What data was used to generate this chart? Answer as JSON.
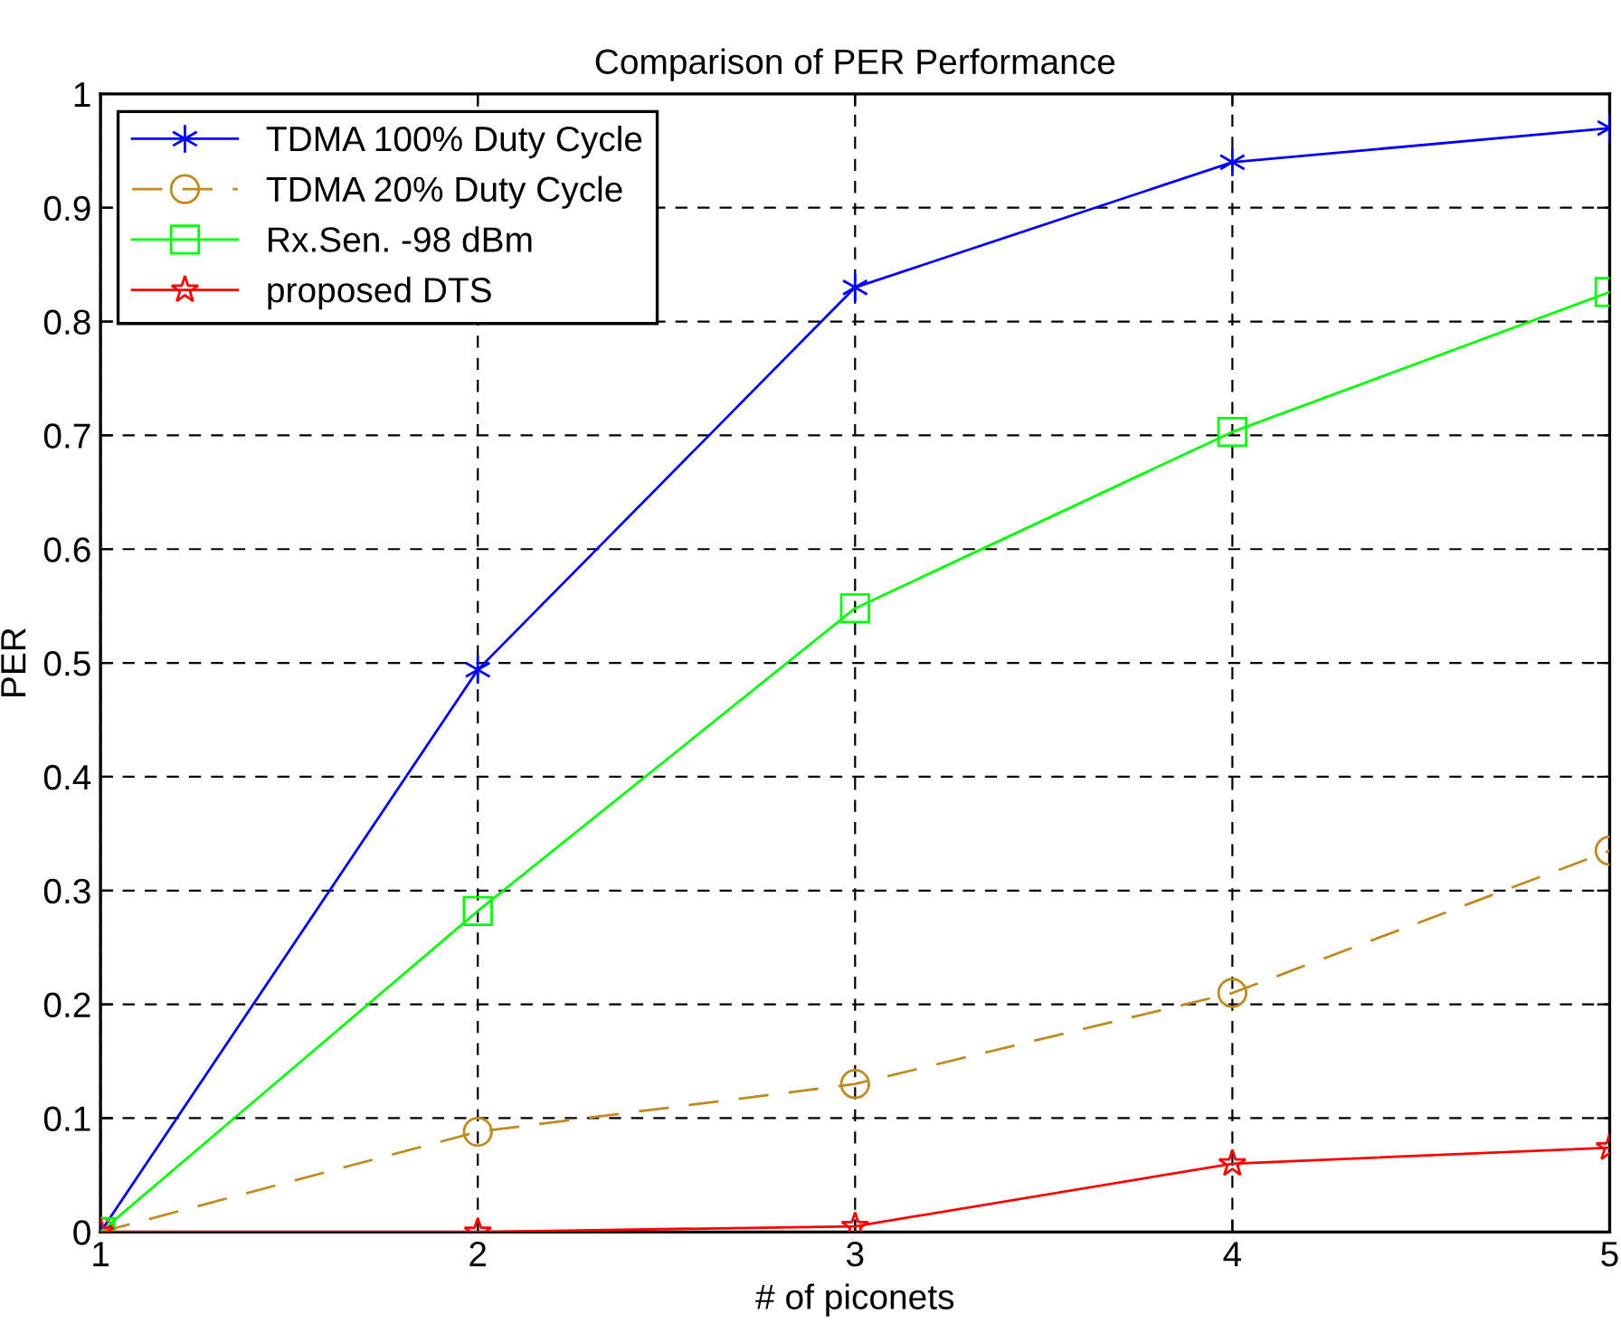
{
  "chart_data": {
    "type": "line",
    "title": "Comparison of PER Performance",
    "xlabel": "# of piconets",
    "ylabel": "PER",
    "x": [
      1,
      2,
      3,
      4,
      5
    ],
    "series": [
      {
        "name": "TDMA 100% Duty Cycle",
        "color": "#0000ff",
        "marker": "cross",
        "line_style": "solid",
        "values": [
          0,
          0.494,
          0.83,
          0.94,
          0.97
        ]
      },
      {
        "name": "TDMA 20% Duty Cycle",
        "color": "#c08a20",
        "marker": "circle",
        "line_style": "dashed",
        "values": [
          0,
          0.088,
          0.13,
          0.21,
          0.335
        ]
      },
      {
        "name": "Rx.Sen. -98 dBm",
        "color": "#00ff00",
        "marker": "square",
        "line_style": "solid",
        "values": [
          0,
          0.282,
          0.548,
          0.703,
          0.826
        ]
      },
      {
        "name": "proposed DTS",
        "color": "#ff0000",
        "marker": "star",
        "line_style": "solid",
        "values": [
          0,
          0,
          0.005,
          0.06,
          0.074
        ]
      }
    ],
    "xlim": [
      1,
      5
    ],
    "xticks": [
      1,
      2,
      3,
      4,
      5
    ],
    "ylim": [
      0,
      1
    ],
    "yticks": [
      0,
      0.1,
      0.2,
      0.3,
      0.4,
      0.5,
      0.6,
      0.7,
      0.8,
      0.9,
      1
    ],
    "grid": true,
    "legend": "top left"
  }
}
